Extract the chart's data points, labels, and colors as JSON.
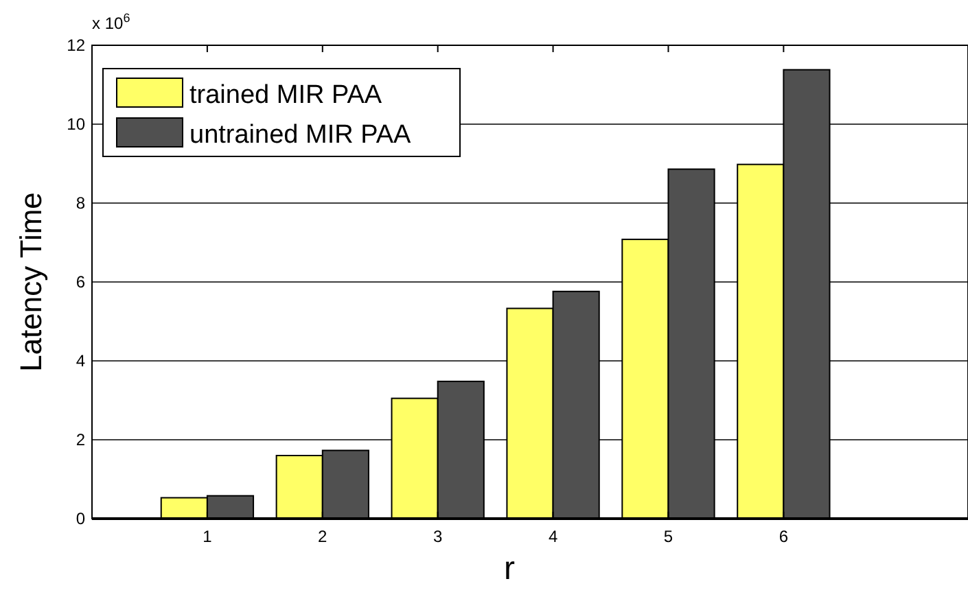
{
  "chart_data": {
    "type": "bar",
    "categories": [
      "1",
      "2",
      "3",
      "4",
      "5",
      "6"
    ],
    "series": [
      {
        "name": "trained MIR PAA",
        "color": "#ffff66",
        "values": [
          0.53,
          1.6,
          3.05,
          5.33,
          7.08,
          8.98
        ]
      },
      {
        "name": "untrained MIR PAA",
        "color": "#505050",
        "values": [
          0.58,
          1.73,
          3.48,
          5.76,
          8.86,
          11.38
        ]
      }
    ],
    "xlabel": "r",
    "ylabel": "Latency Time",
    "annotations": [
      "x 10$^{6}$"
    ],
    "ylim": [
      0,
      12
    ],
    "yticks": [
      0,
      2,
      4,
      6,
      8,
      10,
      12
    ],
    "grid": "y",
    "legend": "top left"
  }
}
